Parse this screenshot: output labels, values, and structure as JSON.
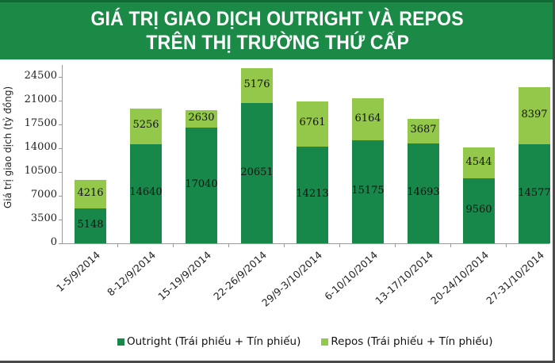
{
  "header": {
    "title_line1": "GIÁ TRỊ GIAO DỊCH OUTRIGHT VÀ REPOS",
    "title_line2": "TRÊN THỊ TRƯỜNG THỨ CẤP",
    "background_color": "#1a8a46"
  },
  "axis": {
    "ylabel": "Giá trị giao dịch (tỷ đồng)",
    "yticks": [
      "0",
      "3500",
      "7000",
      "10500",
      "14000",
      "17500",
      "21000",
      "24500"
    ]
  },
  "legend": {
    "outright_label": "Outright (Trái phiếu + Tín phiếu)",
    "repos_label": "Repos (Trái phiếu + Tín phiếu)",
    "outright_color": "#17884a",
    "repos_color": "#93c84a"
  },
  "bars": [
    {
      "label": "1-5/9/2014",
      "outright": "5148",
      "repos": "4216"
    },
    {
      "label": "8-12/9/2014",
      "outright": "14640",
      "repos": "5256"
    },
    {
      "label": "15-19/9/2014",
      "outright": "17040",
      "repos": "2630"
    },
    {
      "label": "22-26/9/2014",
      "outright": "20651",
      "repos": "5176"
    },
    {
      "label": "29/9-3/10/2014",
      "outright": "14213",
      "repos": "6761"
    },
    {
      "label": "6-10/10/2014",
      "outright": "15175",
      "repos": "6164"
    },
    {
      "label": "13-17/10/2014",
      "outright": "14693",
      "repos": "3687"
    },
    {
      "label": "20-24/10/2014",
      "outright": "9560",
      "repos": "4544"
    },
    {
      "label": "27-31/10/2014",
      "outright": "14577",
      "repos": "8397"
    }
  ],
  "chart_data": {
    "type": "bar",
    "stacked": true,
    "title": "GIÁ TRỊ GIAO DỊCH OUTRIGHT VÀ REPOS TRÊN THỊ TRƯỜNG THỨ CẤP",
    "xlabel": "",
    "ylabel": "Giá trị giao dịch (tỷ đồng)",
    "categories": [
      "1-5/9/2014",
      "8-12/9/2014",
      "15-19/9/2014",
      "22-26/9/2014",
      "29/9-3/10/2014",
      "6-10/10/2014",
      "13-17/10/2014",
      "20-24/10/2014",
      "27-31/10/2014"
    ],
    "series": [
      {
        "name": "Outright (Trái phiếu + Tín phiếu)",
        "color": "#17884a",
        "values": [
          5148,
          14640,
          17040,
          20651,
          14213,
          15175,
          14693,
          9560,
          14577
        ]
      },
      {
        "name": "Repos (Trái phiếu + Tín phiếu)",
        "color": "#93c84a",
        "values": [
          4216,
          5256,
          2630,
          5176,
          6761,
          6164,
          3687,
          4544,
          8397
        ]
      }
    ],
    "ylim": [
      0,
      26000
    ],
    "yticks": [
      0,
      3500,
      7000,
      10500,
      14000,
      17500,
      21000,
      24500
    ],
    "grid": false,
    "legend_position": "bottom"
  }
}
